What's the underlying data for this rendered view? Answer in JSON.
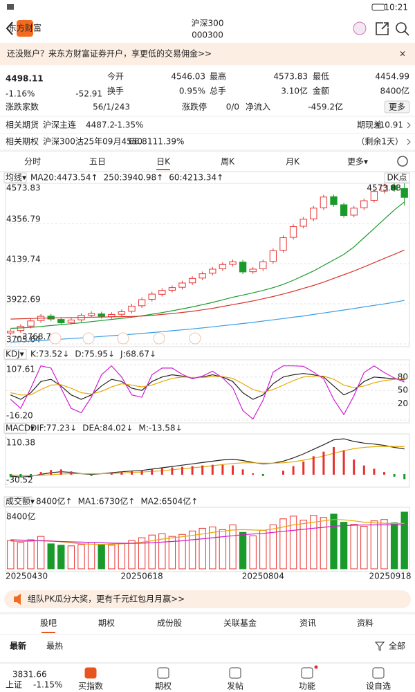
{
  "status": {
    "time": "10:21"
  },
  "header": {
    "logo": "东方财富",
    "title": "沪深300",
    "code": "000300"
  },
  "banner": {
    "text": "还没账户？来东方财富证券开户，享更低的交易佣金>>",
    "close": "×"
  },
  "quote": {
    "price": "4498.11",
    "pct": "-1.16%",
    "change": "-52.91",
    "fields": [
      {
        "label": "今开",
        "value": "4546.03",
        "color": "#1a9a2a"
      },
      {
        "label": "最高",
        "value": "4573.83",
        "color": "#e8312f"
      },
      {
        "label": "最低",
        "value": "4454.99",
        "color": "#1a9a2a"
      },
      {
        "label": "换手",
        "value": "0.95%",
        "color": "#222222"
      },
      {
        "label": "总手",
        "value": "3.10亿",
        "color": "#222222"
      },
      {
        "label": "金额",
        "value": "8400亿",
        "color": "#222222"
      }
    ],
    "breadth_label": "涨跌家数",
    "breadth": "56/1/243",
    "limit_label": "涨跌停",
    "limit": "0/0",
    "inflow_label": "净流入",
    "inflow": "-459.2亿",
    "more": "更多"
  },
  "futures": {
    "label": "相关期货",
    "name": "沪深主连",
    "price": "4487.2",
    "pct": "-1.35%",
    "basis_label": "期现差",
    "basis": "-10.91"
  },
  "option": {
    "label": "相关期权",
    "name": "沪深300沽25年09月4550",
    "price": "66.8",
    "pct": "111.39%",
    "remain": "（剩余1天）"
  },
  "tabs": [
    "分时",
    "五日",
    "日K",
    "周K",
    "月K",
    "更多▾"
  ],
  "active_tab": 2,
  "chart_data": [
    {
      "type": "candlestick",
      "label": "均线▾",
      "button": "DK点",
      "grid": true,
      "up_color": "#e8312f",
      "down_color": "#1a9a2a",
      "ylim": [
        3705.64,
        4573.83
      ],
      "yticks": [
        4573.83,
        4356.79,
        4139.74,
        3922.69,
        3705.64
      ],
      "annotations": [
        "4573.83",
        "3768.76"
      ],
      "open": [
        3765,
        3778,
        3802,
        3832,
        3856,
        3838,
        3822,
        3836,
        3861,
        3868,
        3853,
        3866,
        3882,
        3912,
        3947,
        3974,
        3996,
        4012,
        4036,
        4062,
        4088,
        4112,
        4136,
        4148,
        4096,
        4112,
        4152,
        4212,
        4282,
        4342,
        4382,
        4442,
        4502,
        4458,
        4402,
        4442,
        4482,
        4532,
        4562,
        4546.03
      ],
      "close": [
        3775,
        3800,
        3830,
        3855,
        3840,
        3820,
        3835,
        3860,
        3870,
        3855,
        3865,
        3880,
        3910,
        3945,
        3975,
        3995,
        4010,
        4035,
        4060,
        4085,
        4110,
        4135,
        4150,
        4095,
        4110,
        4150,
        4210,
        4280,
        4340,
        4380,
        4440,
        4500,
        4460,
        4400,
        4440,
        4480,
        4530,
        4560,
        4540,
        4498.11
      ],
      "high": [
        3787,
        3812,
        3842,
        3867,
        3868,
        3850,
        3847,
        3872,
        3882,
        3880,
        3877,
        3892,
        3922,
        3957,
        3987,
        4007,
        4022,
        4047,
        4072,
        4097,
        4122,
        4147,
        4162,
        4160,
        4122,
        4162,
        4222,
        4292,
        4352,
        4392,
        4452,
        4512,
        4514,
        4470,
        4452,
        4492,
        4542,
        4572,
        4573,
        4573.83
      ],
      "low": [
        3753,
        3766,
        3790,
        3820,
        3828,
        3808,
        3810,
        3824,
        3849,
        3843,
        3841,
        3854,
        3870,
        3900,
        3935,
        3962,
        3984,
        4000,
        4024,
        4050,
        4076,
        4100,
        4124,
        4083,
        4084,
        4100,
        4140,
        4200,
        4270,
        4330,
        4370,
        4430,
        4448,
        4388,
        4390,
        4430,
        4470,
        4520,
        4528,
        4454.99
      ],
      "series": [
        {
          "name": "MA20:4473.54↑",
          "color": "#1a9a2a",
          "values": [
            3790,
            3792,
            3795,
            3800,
            3805,
            3810,
            3815,
            3820,
            3826,
            3832,
            3838,
            3844,
            3850,
            3858,
            3866,
            3875,
            3885,
            3895,
            3906,
            3918,
            3930,
            3944,
            3958,
            3970,
            3982,
            3995,
            4010,
            4028,
            4050,
            4075,
            4100,
            4130,
            4160,
            4190,
            4230,
            4280,
            4330,
            4380,
            4430,
            4473.54
          ]
        },
        {
          "name": "250:3940.98↑",
          "color": "#3a9ee0",
          "values": [
            3715,
            3718,
            3721,
            3724,
            3728,
            3731,
            3735,
            3738,
            3742,
            3746,
            3750,
            3754,
            3758,
            3762,
            3767,
            3772,
            3777,
            3782,
            3787,
            3792,
            3798,
            3804,
            3810,
            3816,
            3822,
            3829,
            3836,
            3843,
            3850,
            3857,
            3865,
            3873,
            3881,
            3889,
            3897,
            3906,
            3914,
            3922,
            3931,
            3940.98
          ]
        },
        {
          "name": "60:4213.34↑",
          "color": "#d9342b",
          "values": [
            3840,
            3842,
            3843,
            3845,
            3846,
            3847,
            3848,
            3849,
            3850,
            3851,
            3852,
            3853,
            3854,
            3856,
            3860,
            3865,
            3870,
            3876,
            3882,
            3890,
            3898,
            3908,
            3918,
            3928,
            3938,
            3950,
            3962,
            3976,
            3990,
            4006,
            4022,
            4040,
            4060,
            4080,
            4100,
            4122,
            4145,
            4168,
            4190,
            4213.34
          ]
        }
      ]
    },
    {
      "type": "line",
      "label": "KDJ▾",
      "grid": true,
      "ylim": [
        -16.2,
        107.61
      ],
      "yticks": [
        107.61,
        80,
        50,
        20,
        {
          "value": -16.2,
          "label": "-16.20"
        }
      ],
      "series": [
        {
          "name": "K:73.52↓",
          "color": "#222222",
          "values": [
            40,
            30,
            45,
            70,
            75,
            60,
            40,
            30,
            40,
            60,
            75,
            70,
            55,
            50,
            70,
            80,
            85,
            82,
            78,
            80,
            85,
            80,
            70,
            45,
            30,
            40,
            65,
            80,
            85,
            88,
            85,
            80,
            60,
            40,
            50,
            70,
            80,
            78,
            76,
            73.52
          ]
        },
        {
          "name": "D:75.95↓",
          "color": "#e6a800",
          "values": [
            45,
            40,
            40,
            52,
            62,
            63,
            55,
            45,
            42,
            48,
            58,
            65,
            62,
            58,
            62,
            70,
            77,
            80,
            79,
            79,
            81,
            81,
            77,
            65,
            52,
            46,
            52,
            62,
            72,
            80,
            82,
            82,
            75,
            62,
            56,
            60,
            67,
            72,
            75,
            75.95
          ]
        },
        {
          "name": "J:68.67↓",
          "color": "#d21ad2",
          "values": [
            30,
            10,
            55,
            105,
            100,
            55,
            10,
            0,
            35,
            85,
            105,
            80,
            40,
            35,
            85,
            100,
            100,
            86,
            76,
            82,
            93,
            78,
            56,
            5,
            -14,
            28,
            91,
            105,
            105,
            104,
            91,
            76,
            30,
            -4,
            38,
            90,
            105,
            90,
            78,
            68.67
          ]
        }
      ]
    },
    {
      "type": "macd",
      "label": "MACD▾",
      "grid": false,
      "up_color": "#e8312f",
      "down_color": "#1a9a2a",
      "ylim": [
        -30.52,
        110.38
      ],
      "yticks": [
        110.38,
        -30.52
      ],
      "series": [
        {
          "name": "DIF:77.23↓",
          "color": "#222222",
          "kind": "line",
          "values": [
            -5,
            -8,
            -6,
            0,
            5,
            8,
            6,
            2,
            0,
            2,
            5,
            8,
            10,
            12,
            16,
            20,
            24,
            28,
            32,
            36,
            40,
            44,
            46,
            42,
            36,
            32,
            34,
            40,
            50,
            62,
            76,
            90,
            105,
            108,
            100,
            95,
            92,
            88,
            82,
            77.23
          ]
        },
        {
          "name": "DEA:84.02↓",
          "color": "#e6a800",
          "kind": "line",
          "values": [
            -2,
            -4,
            -4,
            -3,
            -1,
            1,
            2,
            2,
            2,
            2,
            3,
            4,
            6,
            7,
            9,
            11,
            14,
            17,
            20,
            23,
            26,
            30,
            33,
            35,
            35,
            34,
            34,
            35,
            38,
            43,
            49,
            56,
            64,
            72,
            78,
            82,
            84,
            85,
            85,
            84.02
          ]
        },
        {
          "name": "M:-13.58↓",
          "color": "#d21ad2",
          "kind": "bar",
          "values": [
            -6,
            -8,
            -4,
            6,
            12,
            14,
            8,
            0,
            -4,
            0,
            4,
            8,
            8,
            10,
            14,
            18,
            20,
            22,
            24,
            26,
            28,
            28,
            26,
            14,
            2,
            -4,
            0,
            10,
            24,
            38,
            54,
            68,
            82,
            72,
            44,
            26,
            16,
            6,
            -6,
            -13.58
          ]
        }
      ]
    },
    {
      "type": "bar",
      "label": "成交额▾",
      "grid": false,
      "up_color": "#e8312f",
      "down_color": "#1a9a2a",
      "ylim": [
        0,
        8400
      ],
      "yticks": [
        {
          "value": 8400,
          "label": "8400亿"
        }
      ],
      "categories": [
        "20250430",
        null,
        null,
        null,
        null,
        null,
        null,
        null,
        null,
        null,
        null,
        null,
        null,
        "20250618",
        null,
        null,
        null,
        null,
        null,
        null,
        null,
        null,
        null,
        null,
        null,
        "20250804",
        null,
        null,
        null,
        null,
        null,
        null,
        null,
        null,
        null,
        null,
        null,
        null,
        "20250918",
        null
      ],
      "series": [
        {
          "name": "8400亿↑",
          "color": "#222222",
          "kind": "bar",
          "values": [
            4200,
            3900,
            4300,
            4800,
            3700,
            3500,
            3400,
            3600,
            3900,
            3600,
            3500,
            3800,
            4200,
            4600,
            5000,
            5200,
            4800,
            5100,
            5600,
            6000,
            6200,
            5800,
            6500,
            5400,
            4900,
            5700,
            6500,
            7400,
            7800,
            7200,
            7900,
            7600,
            8100,
            6900,
            6600,
            6300,
            7100,
            7300,
            6800,
            8400
          ]
        },
        {
          "name": "MA1:6730亿↑",
          "color": "#e6a800",
          "kind": "line",
          "values": [
            4100,
            4050,
            4080,
            4200,
            4150,
            4000,
            3850,
            3700,
            3650,
            3620,
            3650,
            3700,
            3800,
            3950,
            4150,
            4400,
            4600,
            4750,
            4950,
            5150,
            5400,
            5550,
            5750,
            5800,
            5750,
            5700,
            5900,
            6200,
            6500,
            6700,
            6900,
            7100,
            7300,
            7250,
            7100,
            6900,
            6800,
            6750,
            6700,
            6730
          ]
        },
        {
          "name": "MA2:6504亿↑",
          "color": "#d21ad2",
          "kind": "line",
          "values": [
            4300,
            4250,
            4200,
            4150,
            4100,
            4050,
            4000,
            3950,
            3900,
            3850,
            3800,
            3780,
            3780,
            3800,
            3850,
            3950,
            4050,
            4150,
            4300,
            4450,
            4600,
            4750,
            4900,
            5050,
            5150,
            5250,
            5400,
            5550,
            5700,
            5850,
            6000,
            6150,
            6300,
            6400,
            6450,
            6480,
            6500,
            6510,
            6505,
            6504
          ]
        }
      ]
    }
  ],
  "promo": {
    "text": "组队PK瓜分大奖，更有千元红包月月赢>>"
  },
  "sections": [
    "股吧",
    "期权",
    "成份股",
    "关联基金",
    "资讯",
    "资料"
  ],
  "active_section": 0,
  "sort": {
    "latest": "最新",
    "hot": "最热",
    "all": "全部"
  },
  "index_bar": {
    "price": "3831.66",
    "name": "上证",
    "pct": "-1.15%"
  },
  "nav": [
    "买指数",
    "期权",
    "发帖",
    "功能",
    "设自选"
  ]
}
